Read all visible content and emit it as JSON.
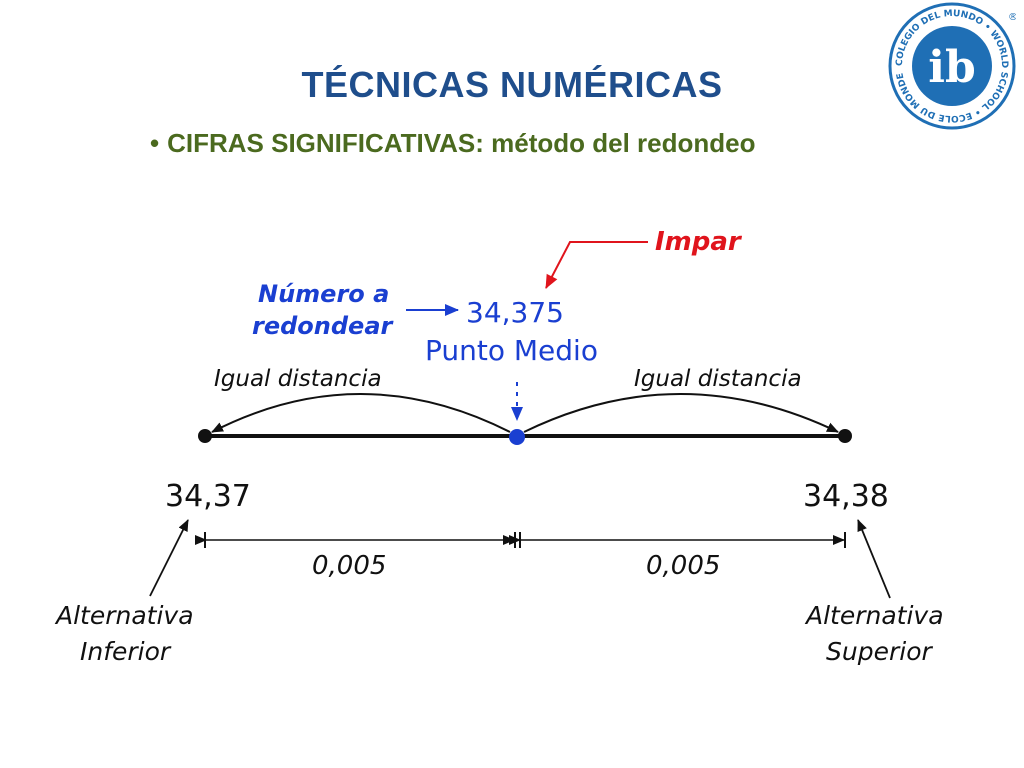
{
  "slide": {
    "title": "TÉCNICAS NUMÉRICAS",
    "subtitle": "CIFRAS SIGNIFICATIVAS: método del redondeo",
    "bullet": "•"
  },
  "logo": {
    "letters": "ib",
    "ring_text": "COLEGIO DEL MUNDO • WORLD SCHOOL • ECOLE DU MONDE",
    "registered": "®",
    "icon": "ib-world-school-seal"
  },
  "diagram": {
    "impar_label": "Impar",
    "numero_label_line1": "Número a",
    "numero_label_line2": "redondear",
    "number_to_round": "34,375",
    "midpoint_label": "Punto Medio",
    "equal_distance_left": "Igual distancia",
    "equal_distance_right": "Igual distancia",
    "lower_value": "34,37",
    "upper_value": "34,38",
    "distance_left": "0,005",
    "distance_right": "0,005",
    "lower_alt_line1": "Alternativa",
    "lower_alt_line2": "Inferior",
    "upper_alt_line1": "Alternativa",
    "upper_alt_line2": "Superior",
    "colors": {
      "blue": "#1a3fd1",
      "red": "#e0141c",
      "black": "#111111",
      "title_blue": "#1f4e8c",
      "subtitle_green": "#4b6a1f"
    }
  }
}
